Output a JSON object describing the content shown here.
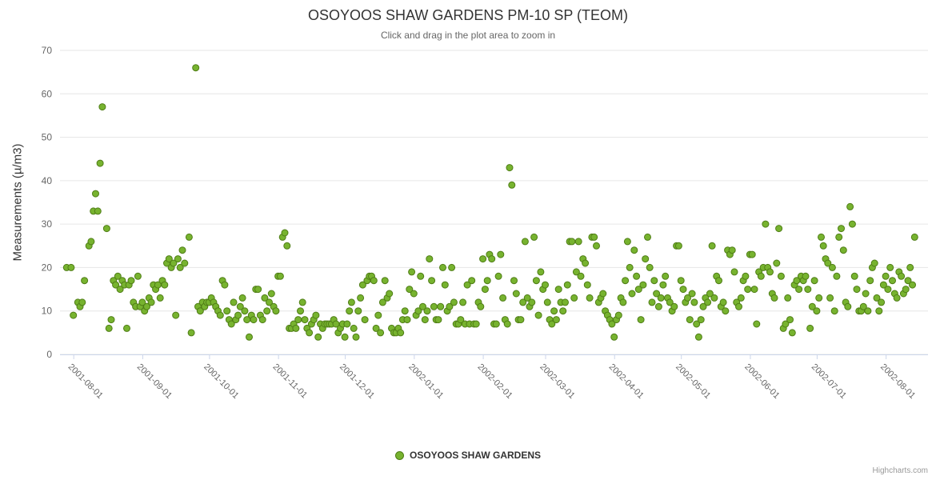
{
  "credits": "Highcharts.com",
  "colors": {
    "point_fill": "#77b32f",
    "point_stroke": "#4f7d16",
    "grid": "#e6e6e6",
    "axis_line": "#ccd6eb",
    "tick_text": "#666666",
    "title_text": "#333333",
    "subtitle_text": "#666666",
    "legend_text": "#333333",
    "credits_text": "#999999"
  },
  "chart_data": {
    "type": "scatter",
    "title": "OSOYOOS SHAW GARDENS PM-10 SP (TEOM)",
    "subtitle": "Click and drag in the plot area to zoom in",
    "xlabel": "",
    "ylabel": "Measurements (µ/m3)",
    "ylim": [
      0,
      70
    ],
    "yticks": [
      0,
      10,
      20,
      30,
      40,
      50,
      60,
      70
    ],
    "grid": true,
    "legend_position": "bottom",
    "x_range": [
      "2001-07-26",
      "2002-08-20"
    ],
    "xticks": [
      "2001-08-01",
      "2001-09-01",
      "2001-10-01",
      "2001-11-01",
      "2001-12-01",
      "2002-01-01",
      "2002-02-01",
      "2002-03-01",
      "2002-04-01",
      "2002-05-01",
      "2002-06-01",
      "2002-07-01",
      "2002-08-01"
    ],
    "series": [
      {
        "name": "OSOYOOS SHAW GARDENS",
        "points_by_month": [
          {
            "month": "2001-07",
            "first_day": 29,
            "values": [
              20,
              null,
              20
            ]
          },
          {
            "month": "2001-08",
            "first_day": 1,
            "values": [
              9,
              null,
              12,
              11,
              12,
              17,
              null,
              25,
              26,
              33,
              37,
              33,
              44,
              57,
              null,
              29,
              6,
              8,
              17,
              16,
              18,
              15,
              17,
              16,
              6,
              16,
              17,
              12,
              11,
              18,
              11
            ]
          },
          {
            "month": "2001-09",
            "first_day": 1,
            "values": [
              12,
              10,
              11,
              13,
              12,
              16,
              15,
              16,
              13,
              17,
              16,
              21,
              22,
              20,
              21,
              9,
              22,
              20,
              24,
              21,
              null,
              27,
              5,
              null,
              66,
              11,
              10,
              12,
              11,
              12
            ]
          },
          {
            "month": "2001-10",
            "first_day": 1,
            "values": [
              12,
              13,
              12,
              11,
              10,
              9,
              17,
              16,
              10,
              8,
              7,
              12,
              8,
              9,
              11,
              13,
              10,
              8,
              4,
              9,
              8,
              15,
              15,
              9,
              8,
              13,
              10,
              12,
              14,
              11,
              10
            ]
          },
          {
            "month": "2001-11",
            "first_day": 1,
            "values": [
              18,
              18,
              27,
              28,
              25,
              6,
              6,
              7,
              6,
              8,
              10,
              12,
              8,
              6,
              5,
              7,
              8,
              9,
              4,
              7,
              6,
              7,
              7,
              7,
              7,
              8,
              7,
              5,
              6,
              7
            ]
          },
          {
            "month": "2001-12",
            "first_day": 1,
            "values": [
              4,
              7,
              10,
              12,
              6,
              4,
              10,
              13,
              16,
              8,
              17,
              18,
              18,
              17,
              6,
              9,
              5,
              12,
              17,
              13,
              14,
              6,
              5,
              5,
              6,
              5,
              8,
              10,
              8,
              15,
              19
            ]
          },
          {
            "month": "2002-01",
            "first_day": 1,
            "values": [
              14,
              9,
              10,
              18,
              11,
              8,
              10,
              22,
              17,
              11,
              8,
              8,
              11,
              20,
              16,
              10,
              11,
              20,
              12,
              7,
              7,
              8,
              12,
              7,
              16,
              7,
              17,
              7,
              7,
              12,
              11
            ]
          },
          {
            "month": "2002-02",
            "first_day": 1,
            "values": [
              22,
              15,
              17,
              23,
              22,
              7,
              7,
              18,
              23,
              13,
              8,
              7,
              43,
              39,
              17,
              14,
              8,
              8,
              12,
              26,
              13,
              11,
              12,
              27,
              17,
              9,
              19,
              15
            ]
          },
          {
            "month": "2002-03",
            "first_day": 1,
            "values": [
              16,
              12,
              8,
              7,
              10,
              8,
              15,
              12,
              10,
              12,
              16,
              26,
              26,
              13,
              19,
              26,
              18,
              22,
              21,
              16,
              13,
              27,
              27,
              25,
              12,
              13,
              14,
              10,
              9,
              8,
              7
            ]
          },
          {
            "month": "2002-04",
            "first_day": 1,
            "values": [
              4,
              8,
              9,
              13,
              12,
              17,
              26,
              20,
              14,
              24,
              18,
              15,
              8,
              16,
              22,
              27,
              20,
              12,
              17,
              14,
              11,
              13,
              16,
              18,
              13,
              12,
              10,
              11,
              25,
              25
            ]
          },
          {
            "month": "2002-05",
            "first_day": 1,
            "values": [
              17,
              15,
              12,
              13,
              8,
              14,
              12,
              7,
              4,
              8,
              11,
              13,
              12,
              14,
              25,
              13,
              18,
              17,
              11,
              12,
              10,
              24,
              23,
              24,
              19,
              12,
              11,
              13,
              17,
              18,
              15
            ]
          },
          {
            "month": "2002-06",
            "first_day": 1,
            "values": [
              23,
              23,
              15,
              7,
              19,
              18,
              20,
              30,
              20,
              19,
              14,
              13,
              21,
              29,
              18,
              6,
              7,
              13,
              8,
              5,
              16,
              17,
              15,
              18,
              17,
              18,
              15,
              6,
              11,
              17
            ]
          },
          {
            "month": "2002-07",
            "first_day": 1,
            "values": [
              10,
              13,
              27,
              25,
              22,
              21,
              13,
              20,
              10,
              18,
              27,
              29,
              24,
              12,
              11,
              34,
              30,
              18,
              15,
              10,
              10,
              11,
              14,
              10,
              17,
              20,
              21,
              13,
              10,
              12,
              16
            ]
          },
          {
            "month": "2002-08",
            "first_day": 1,
            "values": [
              18,
              15,
              20,
              17,
              14,
              13,
              19,
              18,
              14,
              15,
              17,
              20,
              16,
              27
            ]
          }
        ]
      }
    ]
  }
}
